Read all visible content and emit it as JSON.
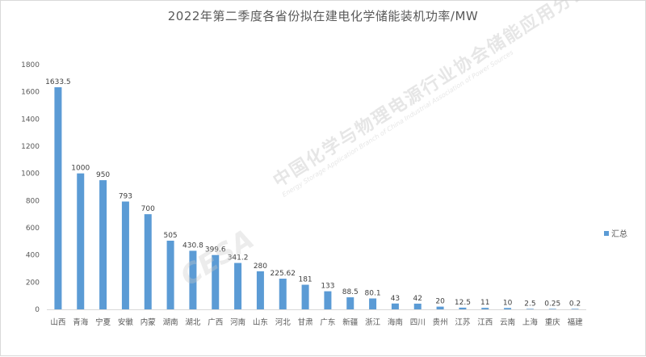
{
  "chart_data": {
    "type": "bar",
    "title": "2022年第二季度各省份拟在建电化学储能装机功率/MW",
    "categories": [
      "山西",
      "青海",
      "宁夏",
      "安徽",
      "内蒙",
      "湖南",
      "湖北",
      "广西",
      "河南",
      "山东",
      "河北",
      "甘肃",
      "广东",
      "新疆",
      "浙江",
      "海南",
      "四川",
      "贵州",
      "江苏",
      "江西",
      "云南",
      "上海",
      "重庆",
      "福建"
    ],
    "series": [
      {
        "name": "汇总",
        "values": [
          1633.5,
          1000,
          950,
          793,
          700,
          505,
          430.8,
          399.6,
          341.2,
          280,
          225.62,
          181,
          133,
          88.5,
          80.1,
          43,
          42,
          20,
          12.5,
          11,
          10,
          2.5,
          0.25,
          0.2
        ],
        "labels": [
          "1633.5",
          "1000",
          "950",
          "793",
          "700",
          "505",
          "430.8",
          "399.6",
          "341.2",
          "280",
          "225.62",
          "181",
          "133",
          "88.5",
          "80.1",
          "43",
          "42",
          "20",
          "12.5",
          "11",
          "10",
          "2.5",
          "0.25",
          "0.2"
        ]
      }
    ],
    "yticks": [
      "0",
      "200",
      "400",
      "600",
      "800",
      "1000",
      "1200",
      "1400",
      "1600",
      "1800"
    ],
    "ylim": [
      0,
      1800
    ],
    "grid": false,
    "legend": "right",
    "bar_color": "#5b9bd5"
  },
  "watermark": {
    "main": "中国化学与物理电源行业协会储能应用分会",
    "sub": "Energy Storage Application Branch of China Industrial Association of Power Sources",
    "logo": "CESA"
  }
}
